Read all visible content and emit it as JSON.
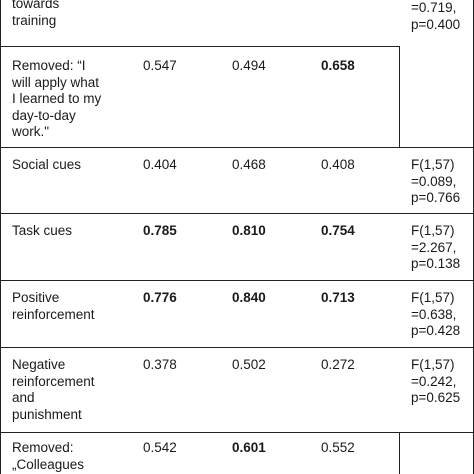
{
  "rows": [
    {
      "label": [
        "towards",
        "training"
      ],
      "values": [
        "",
        "",
        ""
      ],
      "bold": [
        false,
        false,
        false
      ],
      "stat": [
        "=0.719,",
        "p=0.400"
      ],
      "stat_top_partial": ""
    },
    {
      "label": [
        "Removed: “I",
        "will apply what",
        "I learned to my",
        "day-to-day",
        "work.\""
      ],
      "values": [
        "0.547",
        "0.494",
        "0.658"
      ],
      "bold": [
        false,
        false,
        true
      ],
      "stat": []
    },
    {
      "label": [
        "Social cues"
      ],
      "values": [
        "0.404",
        "0.468",
        "0.408"
      ],
      "bold": [
        false,
        false,
        false
      ],
      "stat": [
        "F(1,57)",
        "=0.089,",
        "p=0.766"
      ]
    },
    {
      "label": [
        "Task cues"
      ],
      "values": [
        "0.785",
        "0.810",
        "0.754"
      ],
      "bold": [
        true,
        true,
        true
      ],
      "stat": [
        "F(1,57)",
        "=2.267,",
        "p=0.138"
      ]
    },
    {
      "label": [
        "Positive",
        "reinforcement"
      ],
      "values": [
        "0.776",
        "0.840",
        "0.713"
      ],
      "bold": [
        true,
        true,
        true
      ],
      "stat": [
        "F(1,57)",
        "=0.638,",
        "p=0.428"
      ]
    },
    {
      "label": [
        "Negative",
        "reinforcement",
        "and",
        "punishment"
      ],
      "values": [
        "0.378",
        "0.502",
        "0.272"
      ],
      "bold": [
        false,
        false,
        false
      ],
      "stat": [
        "F(1,57)",
        "=0.242,",
        "p=0.625"
      ]
    },
    {
      "label": [
        "Removed:",
        "„Colleagues"
      ],
      "values": [
        "0.542",
        "0.601",
        "0.552"
      ],
      "bold": [
        false,
        true,
        false
      ],
      "stat": []
    }
  ]
}
